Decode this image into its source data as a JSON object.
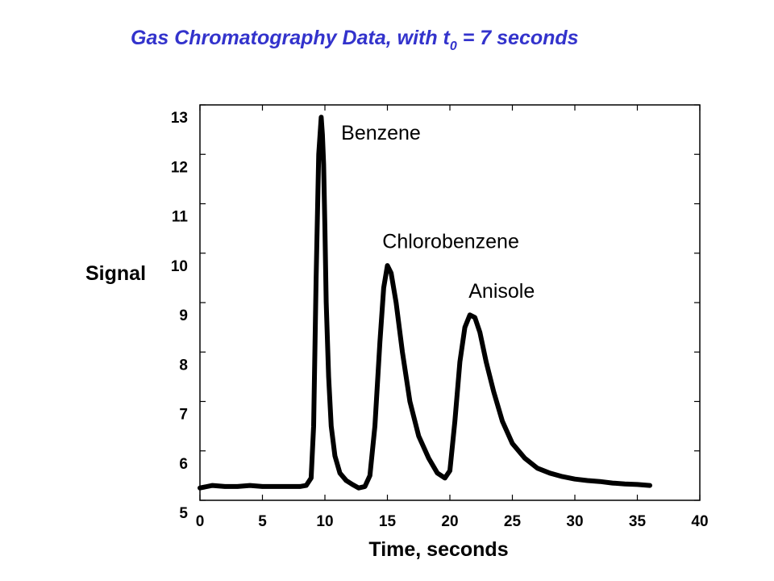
{
  "chart_data": {
    "type": "line",
    "title": "Gas Chromatography Data, with t",
    "title_subscript": "0",
    "title_suffix": " = 7 seconds",
    "xlabel": "Time, seconds",
    "ylabel": "Signal",
    "xlim": [
      0,
      40
    ],
    "ylim": [
      5,
      13
    ],
    "xticks": [
      0,
      5,
      10,
      15,
      20,
      25,
      30,
      35,
      40
    ],
    "yticks": [
      5,
      6,
      7,
      8,
      9,
      10,
      11,
      12,
      13
    ],
    "grid": false,
    "annotations": [
      {
        "text": "Benzene",
        "x": 11.3,
        "y": 12.3
      },
      {
        "text": "Chlorobenzene",
        "x": 14.6,
        "y": 10.1
      },
      {
        "text": "Anisole",
        "x": 21.5,
        "y": 9.1
      }
    ],
    "series": [
      {
        "color": "#000000",
        "x": [
          0,
          1,
          2,
          3,
          4,
          5,
          6,
          7,
          8,
          8.5,
          8.9,
          9.1,
          9.3,
          9.5,
          9.7,
          9.8,
          9.9,
          10.0,
          10.1,
          10.3,
          10.5,
          10.8,
          11.2,
          11.7,
          12.2,
          12.7,
          13.2,
          13.6,
          14.0,
          14.4,
          14.7,
          15.0,
          15.3,
          15.7,
          16.2,
          16.8,
          17.5,
          18.3,
          19.0,
          19.6,
          20.0,
          20.4,
          20.8,
          21.2,
          21.6,
          22.0,
          22.4,
          22.9,
          23.5,
          24.2,
          25.0,
          26.0,
          27.0,
          28.0,
          29.0,
          30.0,
          31.0,
          32.0,
          33.0,
          34.0,
          35.0,
          36.0
        ],
        "y": [
          5.25,
          5.3,
          5.28,
          5.28,
          5.3,
          5.28,
          5.28,
          5.28,
          5.28,
          5.3,
          5.45,
          6.5,
          9.5,
          12.0,
          12.75,
          12.4,
          11.8,
          10.5,
          9.0,
          7.5,
          6.5,
          5.9,
          5.55,
          5.4,
          5.32,
          5.25,
          5.28,
          5.5,
          6.5,
          8.2,
          9.3,
          9.75,
          9.6,
          9.0,
          8.0,
          7.0,
          6.3,
          5.85,
          5.55,
          5.45,
          5.6,
          6.6,
          7.8,
          8.5,
          8.75,
          8.7,
          8.4,
          7.8,
          7.2,
          6.6,
          6.15,
          5.85,
          5.65,
          5.55,
          5.48,
          5.43,
          5.4,
          5.38,
          5.35,
          5.33,
          5.32,
          5.3
        ]
      }
    ]
  }
}
